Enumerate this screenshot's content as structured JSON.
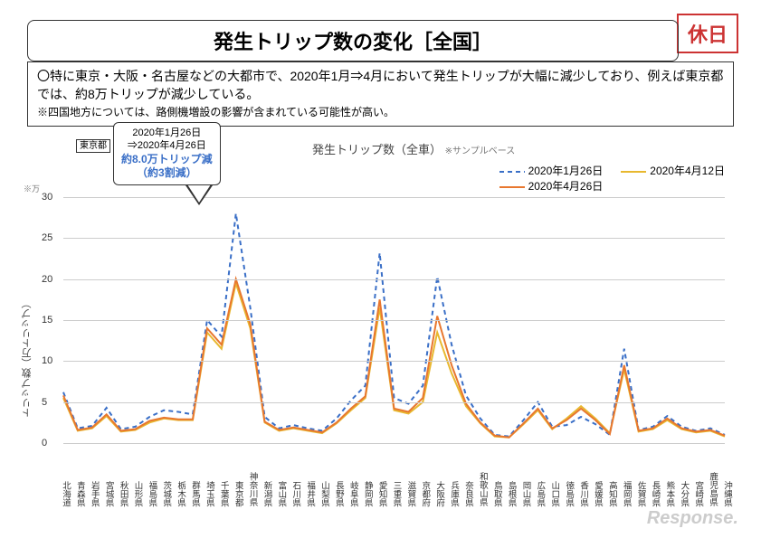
{
  "badge_text": "休日",
  "title": "発生トリップ数の変化［全国］",
  "desc_main": "〇特に東京・大阪・名古屋などの大都市で、2020年1月⇒4月において発生トリップが大幅に減少しており、例えば東京都では、約8万トリップが減少している。",
  "desc_sub": "※四国地方については、路側機増設の影響が含まれている可能性が高い。",
  "callout": {
    "location": "東京都",
    "line1": "2020年1月26日",
    "line2": "⇒2020年4月26日",
    "emph1": "約8.0万トリップ減",
    "emph2": "（約3割減）"
  },
  "chart": {
    "title": "発生トリップ数（全車）",
    "title_sub": "※サンプルベース",
    "yaxis_label": "トリップ数（万トリップ）",
    "sample_note": "※万",
    "ylim": [
      0,
      30
    ],
    "yticks": [
      0,
      5,
      10,
      15,
      20,
      25,
      30
    ],
    "categories": [
      "北海道",
      "青森県",
      "岩手県",
      "宮城県",
      "秋田県",
      "山形県",
      "福島県",
      "茨城県",
      "栃木県",
      "群馬県",
      "埼玉県",
      "千葉県",
      "東京都",
      "神奈川県",
      "新潟県",
      "富山県",
      "石川県",
      "福井県",
      "山梨県",
      "長野県",
      "岐阜県",
      "静岡県",
      "愛知県",
      "三重県",
      "滋賀県",
      "京都府",
      "大阪府",
      "兵庫県",
      "奈良県",
      "和歌山県",
      "鳥取県",
      "島根県",
      "岡山県",
      "広島県",
      "山口県",
      "徳島県",
      "香川県",
      "愛媛県",
      "高知県",
      "福岡県",
      "佐賀県",
      "長崎県",
      "熊本県",
      "大分県",
      "宮崎県",
      "鹿児島県",
      "沖縄県"
    ],
    "series": [
      {
        "label": "2020年1月26日",
        "color": "#3a6fc7",
        "dash": "5,4",
        "width": 2,
        "values": [
          6.2,
          1.8,
          2.1,
          4.3,
          1.7,
          2.0,
          3.2,
          4.0,
          3.8,
          3.5,
          15.0,
          13.0,
          28.0,
          16.5,
          3.2,
          1.8,
          2.2,
          1.8,
          1.5,
          3.0,
          5.2,
          7.0,
          23.2,
          5.5,
          4.8,
          7.0,
          20.3,
          12.0,
          5.8,
          3.0,
          1.0,
          0.8,
          2.8,
          5.0,
          2.0,
          2.2,
          3.2,
          2.3,
          1.0,
          11.5,
          1.6,
          2.0,
          3.3,
          2.0,
          1.5,
          1.8,
          1.0
        ]
      },
      {
        "label": "2020年4月12日",
        "color": "#e8b82f",
        "dash": "",
        "width": 2,
        "values": [
          5.5,
          1.5,
          1.8,
          3.3,
          1.4,
          1.6,
          2.5,
          3.0,
          2.8,
          2.8,
          13.5,
          11.5,
          19.5,
          14.0,
          2.5,
          1.5,
          1.8,
          1.5,
          1.2,
          2.4,
          4.0,
          5.5,
          16.5,
          4.0,
          3.6,
          5.0,
          13.5,
          8.5,
          4.5,
          2.4,
          0.8,
          0.7,
          2.3,
          4.0,
          1.7,
          3.0,
          4.5,
          3.0,
          1.2,
          9.0,
          1.4,
          1.7,
          2.8,
          1.7,
          1.3,
          1.5,
          0.8
        ]
      },
      {
        "label": "2020年4月26日",
        "color": "#e8772f",
        "dash": "",
        "width": 2,
        "values": [
          5.8,
          1.6,
          1.9,
          3.5,
          1.5,
          1.7,
          2.7,
          3.1,
          2.9,
          2.9,
          14.0,
          12.0,
          20.0,
          14.5,
          2.6,
          1.6,
          1.9,
          1.6,
          1.3,
          2.5,
          4.2,
          5.7,
          17.5,
          4.2,
          3.8,
          5.5,
          15.5,
          9.5,
          4.8,
          2.5,
          0.9,
          0.7,
          2.4,
          4.2,
          1.8,
          2.8,
          4.2,
          2.8,
          1.1,
          9.5,
          1.5,
          1.8,
          3.0,
          1.8,
          1.4,
          1.6,
          0.9
        ]
      }
    ]
  },
  "watermark": "Response."
}
